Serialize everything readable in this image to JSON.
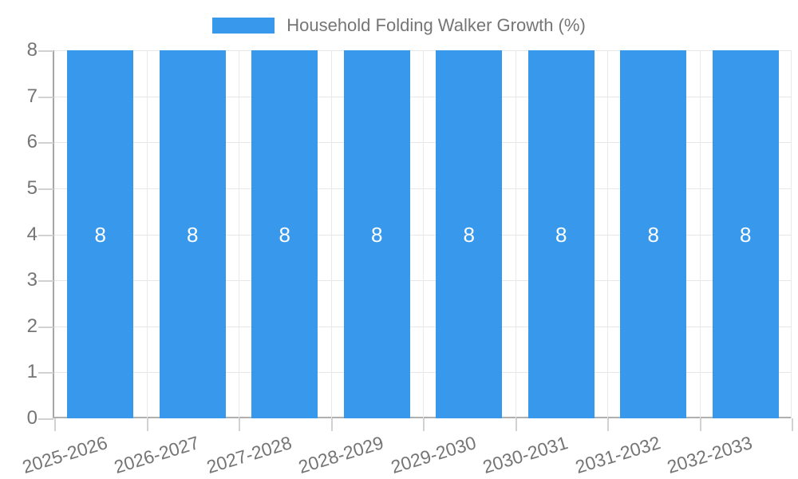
{
  "chart_data": {
    "type": "bar",
    "title": "Household Folding Walker Growth (%)",
    "legend_position": "top",
    "categories": [
      "2025-2026",
      "2026-2027",
      "2027-2028",
      "2028-2029",
      "2029-2030",
      "2030-2031",
      "2031-2032",
      "2032-2033"
    ],
    "values": [
      8,
      8,
      8,
      8,
      8,
      8,
      8,
      8
    ],
    "bar_value_labels": [
      "8",
      "8",
      "8",
      "8",
      "8",
      "8",
      "8",
      "8"
    ],
    "ytick_labels": [
      "0",
      "1",
      "2",
      "3",
      "4",
      "5",
      "6",
      "7",
      "8"
    ],
    "yticks": [
      0,
      1,
      2,
      3,
      4,
      5,
      6,
      7,
      8
    ],
    "ylim": [
      0,
      8
    ],
    "xlabel": "",
    "ylabel": "",
    "grid": true,
    "colors": {
      "bar": "#3899ec",
      "bar_value_label": "#ffffff",
      "axis_text": "#757575",
      "gridline": "#e7e7e7",
      "axis_line": "#a6a6a6",
      "background": "#ffffff"
    }
  }
}
